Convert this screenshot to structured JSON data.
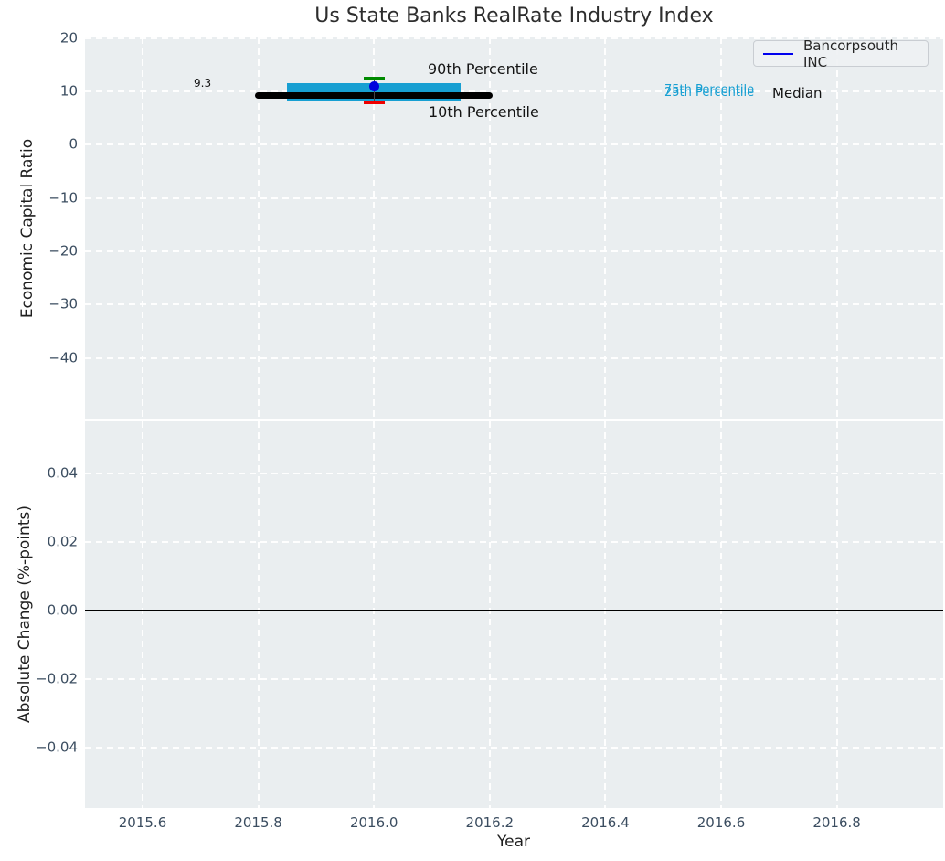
{
  "chart_data": [
    {
      "type": "line",
      "panel": "top",
      "title": "Us State Banks RealRate Industry Index",
      "ylabel": "Economic Capital Ratio",
      "xlim": [
        2015.5,
        2016.98
      ],
      "ylim": [
        -51.4,
        20.1
      ],
      "grid": "white-dashed",
      "legend": {
        "label": "Bancorpsouth INC",
        "color": "#0000ee",
        "location": "upper right"
      },
      "yticks": {
        "values": [
          20,
          10,
          0,
          -10,
          -20,
          -30,
          -40
        ],
        "labels": [
          "20",
          "10",
          "0",
          "−10",
          "−20",
          "−30",
          "−40"
        ]
      },
      "company_series": {
        "name": "Bancorpsouth INC",
        "x": 2016.0,
        "y": 11.0,
        "marker": "circle",
        "color": "#0000dd"
      },
      "industry_stats": {
        "x_center": 2016.0,
        "median": {
          "value": 9.3,
          "x_start": 2015.8,
          "x_end": 2016.2,
          "color": "#000000"
        },
        "band_25_75": {
          "low": 8.1,
          "high": 11.5,
          "x_start": 2015.85,
          "x_end": 2016.15,
          "color": "#179fd2"
        },
        "p90": {
          "value": 12.4,
          "color": "#008a00"
        },
        "p10": {
          "value": 7.9,
          "color": "#ee0000"
        },
        "stem_color": "#444444"
      },
      "annotations": {
        "median_value": "9.3",
        "p90_label": "90th Percentile",
        "p10_label": "10th Percentile",
        "p75_label": "75th Percentile",
        "p25_label": "25th Percentile",
        "median_label": "Median"
      }
    },
    {
      "type": "line",
      "panel": "bottom",
      "ylabel": "Absolute Change (%-points)",
      "xlabel": "Year",
      "ylim": [
        -0.058,
        0.055
      ],
      "grid": "white-dashed",
      "yticks": {
        "values": [
          0.04,
          0.02,
          0,
          -0.02,
          -0.04
        ],
        "labels": [
          "0.04",
          "0.02",
          "0.00",
          "−0.02",
          "−0.04"
        ]
      },
      "xticks": {
        "values": [
          2015.6,
          2015.8,
          2016.0,
          2016.2,
          2016.4,
          2016.6,
          2016.8
        ],
        "labels": [
          "2015.6",
          "2015.8",
          "2016.0",
          "2016.2",
          "2016.4",
          "2016.6",
          "2016.8"
        ]
      },
      "zero_line": {
        "value": 0.0,
        "color": "#000000"
      }
    }
  ],
  "colors": {
    "panel_background": "#eaeef0",
    "gridline": "#ffffff",
    "tick_label": "#3b4d60",
    "axis_label": "#1f1f1f",
    "title": "#2d2d2d"
  }
}
